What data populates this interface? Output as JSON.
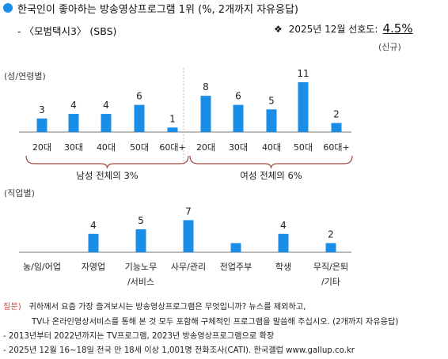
{
  "header": {
    "title": "한국인이 좋아하는 방송영상프로그램 1위 (%, 2개까지 자유응답)",
    "subtitle": "- 〈모범택시3〉 (SBS)",
    "preference_star": "❖",
    "preference_label": "2025년 12월 선호도:",
    "preference_value": "4.5%",
    "preference_note": "(신규)"
  },
  "colors": {
    "bar": "#1a8ee6",
    "bullet": "#1a8ee6",
    "brace": "#a04a48",
    "question_label": "#d24d3c"
  },
  "chart_data": [
    {
      "type": "bar",
      "section_label": "(성/연령별)",
      "categories": [
        "20대",
        "30대",
        "40대",
        "50대",
        "60대+",
        "20대",
        "30대",
        "40대",
        "50대",
        "60대+"
      ],
      "values": [
        3,
        4,
        4,
        6,
        1,
        8,
        6,
        5,
        11,
        2
      ],
      "groups": [
        {
          "label": "남성 전체의 3%",
          "start": 0,
          "end": 4
        },
        {
          "label": "여성 전체의 6%",
          "start": 5,
          "end": 9
        }
      ],
      "ylim": [
        0,
        12
      ]
    },
    {
      "type": "bar",
      "section_label": "(직업별)",
      "categories": [
        [
          "농/임/어업"
        ],
        [
          "자영업"
        ],
        [
          "기능노무",
          "/서비스"
        ],
        [
          "사무/관리"
        ],
        [
          "전업주부"
        ],
        [
          "학생"
        ],
        [
          "무직/은퇴",
          "/기타"
        ]
      ],
      "values": [
        0,
        4,
        5,
        7,
        2,
        4,
        2
      ],
      "value_labels": [
        "",
        "4",
        "5",
        "7",
        "",
        "4",
        "2"
      ],
      "ylim": [
        0,
        12
      ]
    }
  ],
  "footer": {
    "question_label": "질문)",
    "question_line1": "귀하께서 요즘 가장 즐겨보시는 방송영상프로그램은 무엇입니까? 뉴스를 제외하고,",
    "question_line2": "TV나 온라인영상서비스를 통해 본 것 모두 포함해 구체적인 프로그램을 말씀해 주십시오. (2개까지 자유응답)",
    "note1": "- 2013년부터 2022년까지는 TV프로그램, 2023년 방송영상프로그램으로 확장",
    "note2": "- 2025년 12월 16~18일 전국 만 18세 이상 1,001명 전화조사(CATI). 한국갤럽 www.gallup.co.kr"
  }
}
